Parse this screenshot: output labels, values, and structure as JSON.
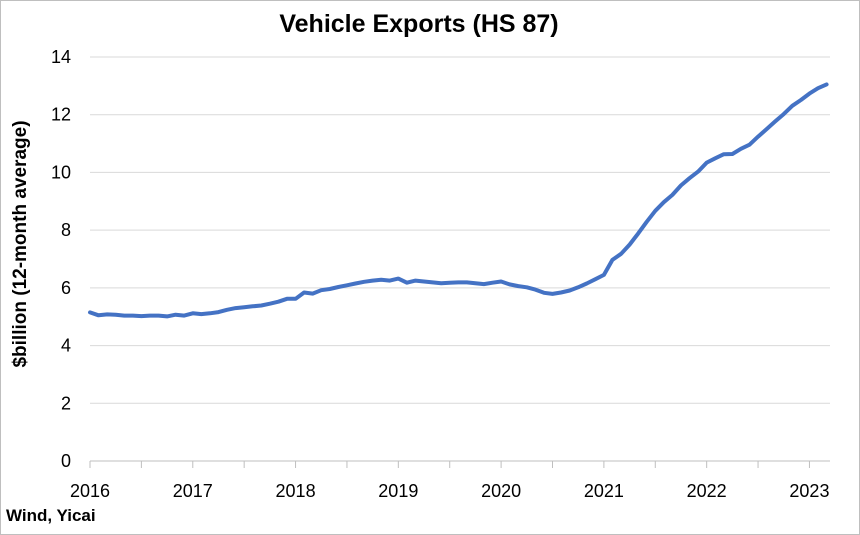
{
  "chart_data": {
    "type": "line",
    "title": "Vehicle Exports (HS 87)",
    "xlabel": "",
    "ylabel": "$billion (12-month average)",
    "source": "Wind, Yicai",
    "ylim": [
      0,
      14
    ],
    "yticks": [
      0,
      2,
      4,
      6,
      8,
      10,
      12,
      14
    ],
    "xlim": [
      2016,
      2023.2
    ],
    "xticks": [
      2016,
      2017,
      2018,
      2019,
      2020,
      2021,
      2022,
      2023
    ],
    "xtick_labels": [
      "2016",
      "2017",
      "2018",
      "2019",
      "2020",
      "2021",
      "2022",
      "2023"
    ],
    "grid": true,
    "line_color": "#4472c4",
    "series": [
      {
        "x": [
          2016.0,
          2016.083,
          2016.167,
          2016.25,
          2016.333,
          2016.417,
          2016.5,
          2016.583,
          2016.667,
          2016.75,
          2016.833,
          2016.917,
          2017.0,
          2017.083,
          2017.167,
          2017.25,
          2017.333,
          2017.417,
          2017.5,
          2017.583,
          2017.667,
          2017.75,
          2017.833,
          2017.917,
          2018.0,
          2018.083,
          2018.167,
          2018.25,
          2018.333,
          2018.417,
          2018.5,
          2018.583,
          2018.667,
          2018.75,
          2018.833,
          2018.917,
          2019.0,
          2019.083,
          2019.167,
          2019.25,
          2019.333,
          2019.417,
          2019.5,
          2019.583,
          2019.667,
          2019.75,
          2019.833,
          2019.917,
          2020.0,
          2020.083,
          2020.167,
          2020.25,
          2020.333,
          2020.417,
          2020.5,
          2020.583,
          2020.667,
          2020.75,
          2020.833,
          2020.917,
          2021.0,
          2021.083,
          2021.167,
          2021.25,
          2021.333,
          2021.417,
          2021.5,
          2021.583,
          2021.667,
          2021.75,
          2021.833,
          2021.917,
          2022.0,
          2022.083,
          2022.167,
          2022.25,
          2022.333,
          2022.417,
          2022.5,
          2022.583,
          2022.667,
          2022.75,
          2022.833,
          2022.917,
          2023.0,
          2023.083,
          2023.167
        ],
        "y": [
          5.15,
          5.05,
          5.08,
          5.07,
          5.04,
          5.04,
          5.02,
          5.04,
          5.04,
          5.01,
          5.07,
          5.04,
          5.12,
          5.09,
          5.12,
          5.16,
          5.24,
          5.3,
          5.33,
          5.36,
          5.39,
          5.45,
          5.52,
          5.62,
          5.62,
          5.84,
          5.8,
          5.92,
          5.96,
          6.03,
          6.09,
          6.15,
          6.21,
          6.25,
          6.28,
          6.25,
          6.32,
          6.18,
          6.25,
          6.22,
          6.19,
          6.16,
          6.18,
          6.19,
          6.19,
          6.16,
          6.13,
          6.18,
          6.22,
          6.12,
          6.06,
          6.02,
          5.94,
          5.83,
          5.79,
          5.84,
          5.91,
          6.02,
          6.15,
          6.3,
          6.45,
          6.97,
          7.18,
          7.5,
          7.88,
          8.29,
          8.67,
          8.97,
          9.22,
          9.55,
          9.8,
          10.03,
          10.34,
          10.49,
          10.63,
          10.64,
          10.82,
          10.96,
          11.24,
          11.5,
          11.77,
          12.02,
          12.31,
          12.51,
          12.73,
          12.92,
          13.05
        ]
      }
    ]
  }
}
